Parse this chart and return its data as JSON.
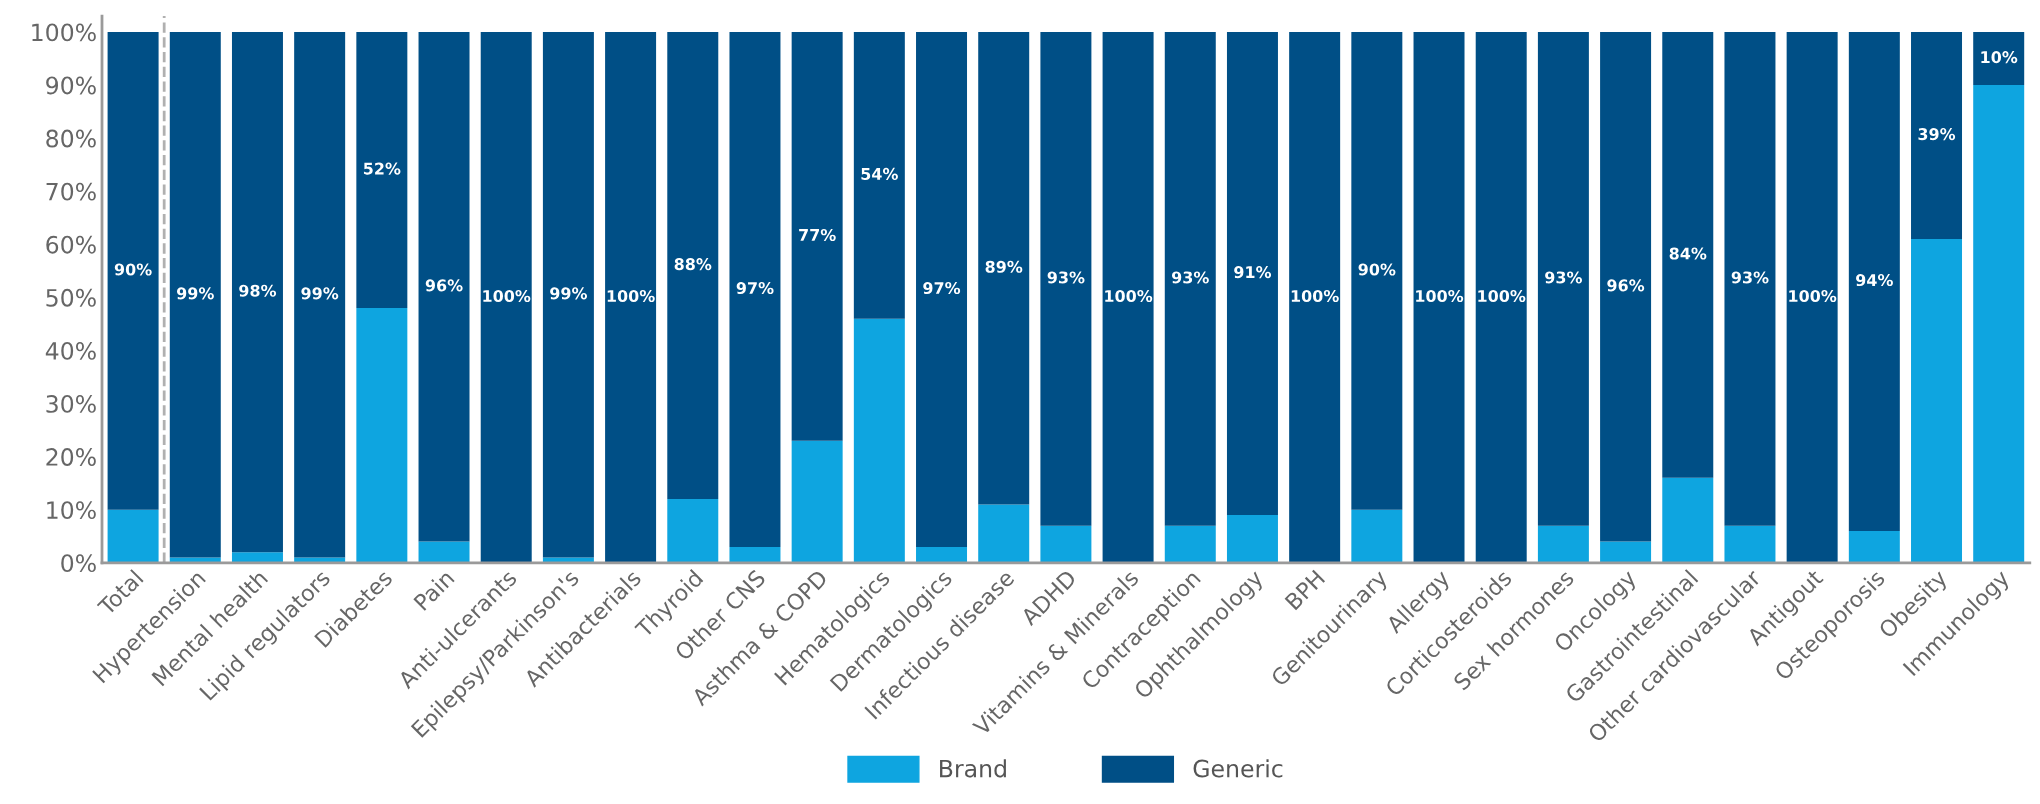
{
  "chart_data": {
    "type": "bar",
    "stacked": true,
    "categories": [
      "Total",
      "Hypertension",
      "Mental health",
      "Lipid regulators",
      "Diabetes",
      "Pain",
      "Anti-ulcerants",
      "Epilepsy/Parkinson's",
      "Antibacterials",
      "Thyroid",
      "Other CNS",
      "Asthma & COPD",
      "Hematologics",
      "Dermatologics",
      "Infectious disease",
      "ADHD",
      "Vitamins & Minerals",
      "Contraception",
      "Ophthalmology",
      "BPH",
      "Genitourinary",
      "Allergy",
      "Corticosteroids",
      "Sex hormones",
      "Oncology",
      "Gastrointestinal",
      "Other cardiovascular",
      "Antigout",
      "Osteoporosis",
      "Obesity",
      "Immunology"
    ],
    "series": [
      {
        "name": "Brand",
        "color": "#0ea5e0",
        "values": [
          10,
          1,
          2,
          1,
          48,
          4,
          0,
          1,
          0,
          12,
          3,
          23,
          46,
          3,
          11,
          7,
          0,
          7,
          9,
          0,
          10,
          0,
          0,
          7,
          4,
          16,
          7,
          0,
          6,
          61,
          90
        ]
      },
      {
        "name": "Generic",
        "color": "#004f86",
        "values": [
          90,
          99,
          98,
          99,
          52,
          96,
          100,
          99,
          100,
          88,
          97,
          77,
          54,
          97,
          89,
          93,
          100,
          93,
          91,
          100,
          90,
          100,
          100,
          93,
          96,
          84,
          93,
          100,
          94,
          39,
          10
        ],
        "value_labels": [
          "90%",
          "99%",
          "98%",
          "99%",
          "52%",
          "96%",
          "100%",
          "99%",
          "100%",
          "88%",
          "97%",
          "77%",
          "54%",
          "97%",
          "89%",
          "93%",
          "100%",
          "93%",
          "91%",
          "100%",
          "90%",
          "100%",
          "100%",
          "93%",
          "96%",
          "84%",
          "93%",
          "100%",
          "94%",
          "39%",
          "10%"
        ]
      }
    ],
    "ylim": [
      0,
      103
    ],
    "yticks": [
      {
        "value": 0,
        "label": "0%"
      },
      {
        "value": 10,
        "label": "10%"
      },
      {
        "value": 20,
        "label": "20%"
      },
      {
        "value": 30,
        "label": "30%"
      },
      {
        "value": 40,
        "label": "40%"
      },
      {
        "value": 50,
        "label": "50%"
      },
      {
        "value": 60,
        "label": "60%"
      },
      {
        "value": 70,
        "label": "70%"
      },
      {
        "value": 80,
        "label": "80%"
      },
      {
        "value": 90,
        "label": "90%"
      },
      {
        "value": 100,
        "label": "100%"
      }
    ],
    "grid": false,
    "legend": "bottom"
  }
}
